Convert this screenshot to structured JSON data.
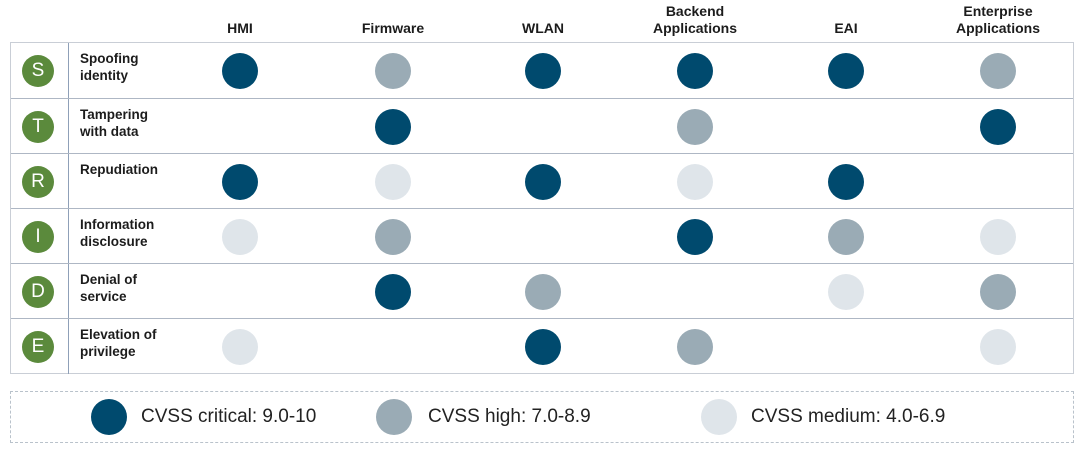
{
  "columns": [
    "HMI",
    "Firmware",
    "WLAN",
    "Backend\nApplications",
    "EAI",
    "Enterprise\nApplications"
  ],
  "rows": [
    {
      "letter": "S",
      "threat": "Spoofing\nidentity"
    },
    {
      "letter": "T",
      "threat": "Tampering\nwith data"
    },
    {
      "letter": "R",
      "threat": "Repudiation"
    },
    {
      "letter": "I",
      "threat": "Information\ndisclosure"
    },
    {
      "letter": "D",
      "threat": "Denial of\nservice"
    },
    {
      "letter": "E",
      "threat": "Elevation of\nprivilege"
    }
  ],
  "ratings": [
    [
      "critical",
      "high",
      "critical",
      "critical",
      "critical",
      "high"
    ],
    [
      null,
      "critical",
      null,
      "high",
      null,
      "critical"
    ],
    [
      "critical",
      "medium",
      "critical",
      "medium",
      "critical",
      null
    ],
    [
      "medium",
      "high",
      null,
      "critical",
      "high",
      "medium"
    ],
    [
      null,
      "critical",
      "high",
      null,
      "medium",
      "high"
    ],
    [
      "medium",
      null,
      "critical",
      "high",
      null,
      "medium"
    ]
  ],
  "legend": [
    {
      "level": "critical",
      "label": "CVSS critical: 9.0-10"
    },
    {
      "level": "high",
      "label": "CVSS high: 7.0-8.9"
    },
    {
      "level": "medium",
      "label": "CVSS medium: 4.0-6.9"
    }
  ],
  "colors": {
    "critical": "#004a6e",
    "high": "#9aabb5",
    "medium": "#dfe5ea",
    "letter_badge": "#5b8a3c"
  }
}
